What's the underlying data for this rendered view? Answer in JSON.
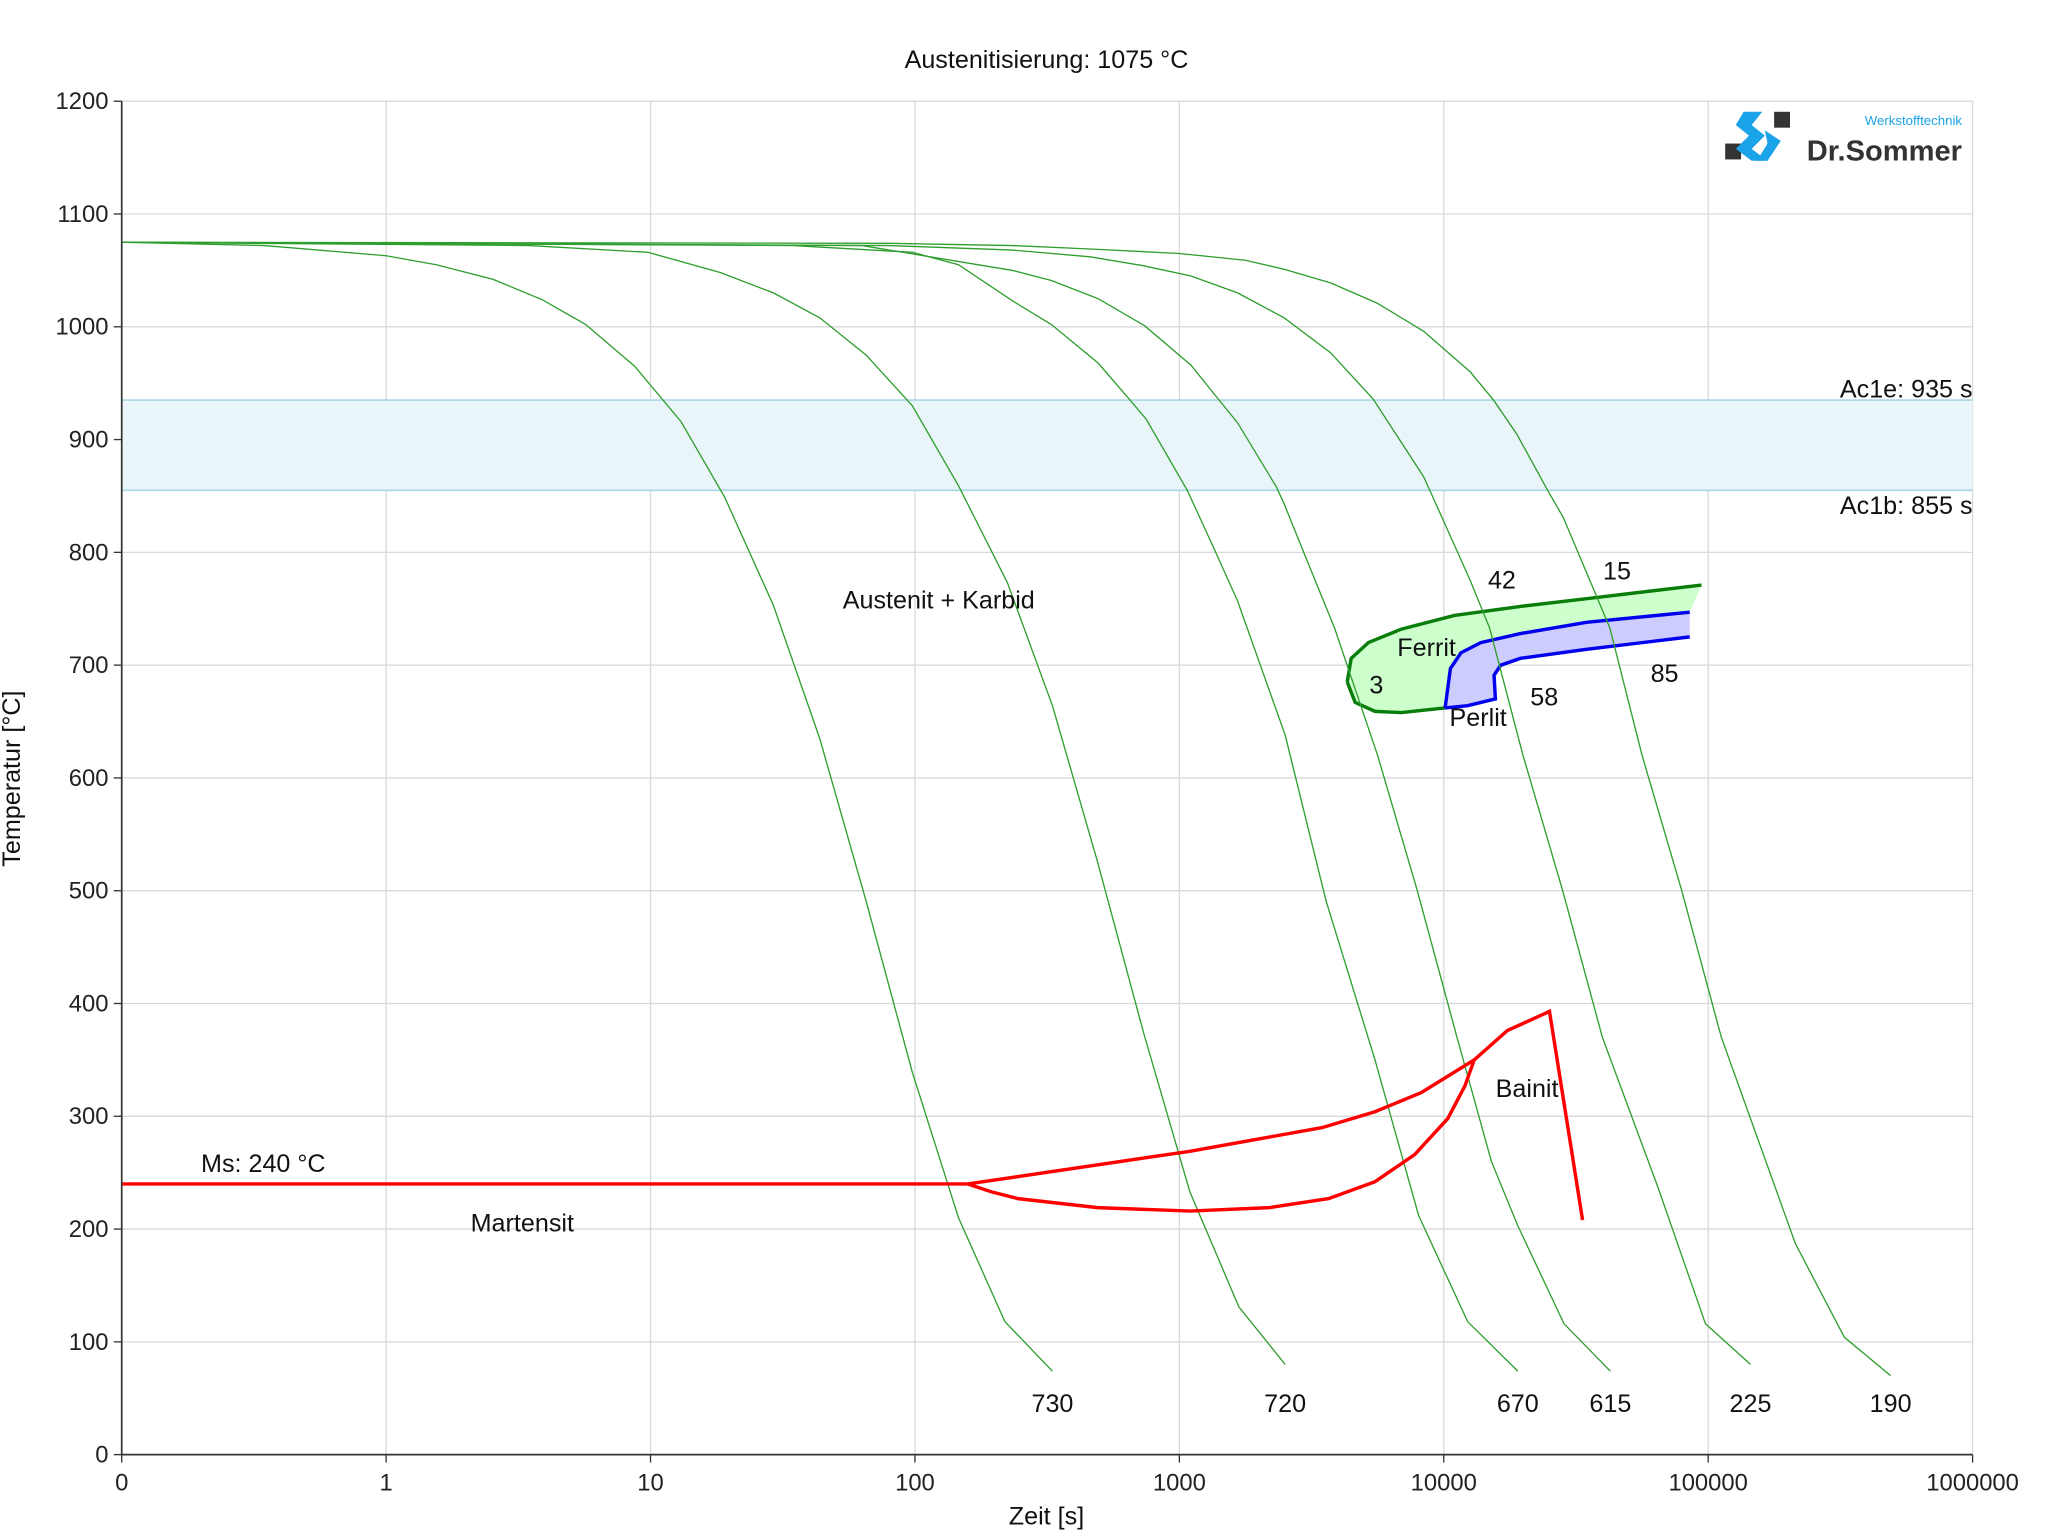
{
  "chart_data": {
    "type": "line",
    "title": "Austenitisierung: 1075 °C",
    "xlabel": "Zeit [s]",
    "ylabel": "Temperatur [°C]",
    "x_scale": "log10",
    "x_ticks": [
      {
        "log": -1,
        "label": "0"
      },
      {
        "log": 0,
        "label": "1"
      },
      {
        "log": 1,
        "label": "10"
      },
      {
        "log": 2,
        "label": "100"
      },
      {
        "log": 3,
        "label": "1000"
      },
      {
        "log": 4,
        "label": "10000"
      },
      {
        "log": 5,
        "label": "100000"
      },
      {
        "log": 6,
        "label": "1000000"
      }
    ],
    "y_ticks": [
      "0",
      "100",
      "200",
      "300",
      "400",
      "500",
      "600",
      "700",
      "800",
      "900",
      "1000",
      "1100",
      "1200"
    ],
    "ylim": [
      0,
      1200
    ],
    "xlim_log": [
      -1,
      6
    ],
    "grid": true,
    "ac1_band": {
      "Ac1e": 935,
      "Ac1b": 855,
      "label_e": "Ac1e: 935 s",
      "label_b": "Ac1b: 855 s"
    },
    "cooling_curves": [
      {
        "label": "730",
        "points": [
          [
            -1,
            1075
          ],
          [
            -0.46,
            1072
          ],
          [
            0,
            1063
          ],
          [
            0.19,
            1055
          ],
          [
            0.405,
            1042
          ],
          [
            0.59,
            1024
          ],
          [
            0.755,
            1002
          ],
          [
            0.94,
            965
          ],
          [
            1.115,
            916
          ],
          [
            1.28,
            849
          ],
          [
            1.465,
            753
          ],
          [
            1.64,
            635
          ],
          [
            1.815,
            491
          ],
          [
            1.99,
            339
          ],
          [
            2.165,
            210
          ],
          [
            2.34,
            118
          ],
          [
            2.52,
            74
          ]
        ]
      },
      {
        "label": "720",
        "points": [
          [
            -1,
            1075
          ],
          [
            0.54,
            1072
          ],
          [
            0.99,
            1066
          ],
          [
            1.265,
            1048
          ],
          [
            1.465,
            1030
          ],
          [
            1.64,
            1008
          ],
          [
            1.815,
            975
          ],
          [
            1.99,
            930
          ],
          [
            2.165,
            859
          ],
          [
            2.35,
            773
          ],
          [
            2.52,
            664
          ],
          [
            2.69,
            526
          ],
          [
            2.865,
            374
          ],
          [
            3.04,
            233
          ],
          [
            3.225,
            131
          ],
          [
            3.4,
            80
          ]
        ]
      },
      {
        "label": "670",
        "points": [
          [
            -1,
            1075
          ],
          [
            1.54,
            1072
          ],
          [
            1.99,
            1066
          ],
          [
            2.165,
            1055
          ],
          [
            2.369,
            1023
          ],
          [
            2.516,
            1002
          ],
          [
            2.692,
            968
          ],
          [
            2.81,
            936
          ],
          [
            2.875,
            918
          ],
          [
            3.03,
            855
          ],
          [
            3.13,
            804
          ],
          [
            3.22,
            757
          ],
          [
            3.4,
            638
          ],
          [
            3.555,
            491
          ],
          [
            3.74,
            350
          ],
          [
            3.905,
            212
          ],
          [
            4.09,
            118
          ],
          [
            4.28,
            74
          ]
        ]
      },
      {
        "label": "615",
        "points": [
          [
            -1,
            1075
          ],
          [
            1.8,
            1072
          ],
          [
            2.369,
            1050
          ],
          [
            2.516,
            1041
          ],
          [
            2.692,
            1025
          ],
          [
            2.868,
            1001
          ],
          [
            3.044,
            966
          ],
          [
            3.147,
            936
          ],
          [
            3.22,
            915
          ],
          [
            3.367,
            858
          ],
          [
            3.396,
            843
          ],
          [
            3.484,
            792
          ],
          [
            3.587,
            733
          ],
          [
            3.75,
            620
          ],
          [
            3.9,
            500
          ],
          [
            4.05,
            370
          ],
          [
            4.18,
            260
          ],
          [
            4.28,
            203
          ],
          [
            4.455,
            116
          ],
          [
            4.63,
            74
          ]
        ]
      },
      {
        "label": "225",
        "points": [
          [
            -1,
            1075
          ],
          [
            1.9,
            1072
          ],
          [
            2.369,
            1068
          ],
          [
            2.662,
            1062
          ],
          [
            2.868,
            1054
          ],
          [
            3.044,
            1045
          ],
          [
            3.22,
            1030
          ],
          [
            3.396,
            1008
          ],
          [
            3.572,
            977
          ],
          [
            3.733,
            936
          ],
          [
            3.924,
            867
          ],
          [
            3.953,
            852
          ],
          [
            4.1,
            775
          ],
          [
            4.173,
            733
          ],
          [
            4.3,
            620
          ],
          [
            4.45,
            500
          ],
          [
            4.6,
            370
          ],
          [
            4.81,
            237
          ],
          [
            4.99,
            116
          ],
          [
            5.16,
            80
          ]
        ]
      },
      {
        "label": "190",
        "points": [
          [
            -1,
            1075
          ],
          [
            1.9,
            1074
          ],
          [
            2.369,
            1072
          ],
          [
            2.662,
            1069
          ],
          [
            3.0,
            1065
          ],
          [
            3.249,
            1059
          ],
          [
            3.396,
            1051
          ],
          [
            3.572,
            1039
          ],
          [
            3.748,
            1021
          ],
          [
            3.924,
            996
          ],
          [
            4.1,
            960
          ],
          [
            4.188,
            935
          ],
          [
            4.276,
            905
          ],
          [
            4.393,
            855
          ],
          [
            4.452,
            831
          ],
          [
            4.569,
            766
          ],
          [
            4.628,
            733
          ],
          [
            4.75,
            620
          ],
          [
            4.9,
            500
          ],
          [
            5.05,
            370
          ],
          [
            5.33,
            187
          ],
          [
            5.515,
            104
          ],
          [
            5.69,
            70
          ]
        ]
      }
    ],
    "ms_line": {
      "temp": 240,
      "points": [
        [
          -1,
          240
        ],
        [
          2.2,
          240
        ]
      ],
      "label": "Ms: 240 °C"
    },
    "bainite": {
      "outer": [
        [
          2.2,
          240
        ],
        [
          3.04,
          269
        ],
        [
          3.54,
          290
        ],
        [
          3.74,
          304
        ],
        [
          3.915,
          321
        ],
        [
          4.115,
          350
        ],
        [
          4.24,
          376
        ],
        [
          4.4,
          393
        ],
        [
          4.525,
          208
        ]
      ],
      "inner": [
        [
          2.2,
          240
        ],
        [
          2.29,
          233
        ],
        [
          2.39,
          227
        ],
        [
          2.69,
          219
        ],
        [
          3.04,
          216
        ],
        [
          3.34,
          219
        ],
        [
          3.565,
          227
        ],
        [
          3.74,
          242
        ],
        [
          3.89,
          266
        ],
        [
          4.015,
          298
        ],
        [
          4.08,
          327
        ],
        [
          4.115,
          350
        ]
      ]
    },
    "ferrite": {
      "top": [
        [
          3.635,
          685
        ],
        [
          3.65,
          706
        ],
        [
          3.715,
          720
        ],
        [
          3.84,
          732
        ],
        [
          4.04,
          744
        ],
        [
          4.29,
          752
        ],
        [
          4.54,
          759
        ],
        [
          4.975,
          771
        ]
      ],
      "bottom": [
        [
          3.635,
          685
        ],
        [
          3.665,
          667
        ],
        [
          3.74,
          659
        ],
        [
          3.84,
          658
        ],
        [
          4.005,
          662
        ]
      ],
      "fill_right": [
        4.93,
        747
      ]
    },
    "pearlite": {
      "upper": [
        [
          4.005,
          662
        ],
        [
          4.025,
          697
        ],
        [
          4.065,
          711
        ],
        [
          4.14,
          720
        ],
        [
          4.29,
          728
        ],
        [
          4.54,
          738
        ],
        [
          4.93,
          747
        ]
      ],
      "lower": [
        [
          4.005,
          662
        ],
        [
          4.09,
          664
        ],
        [
          4.195,
          670
        ],
        [
          4.19,
          691
        ],
        [
          4.215,
          700
        ],
        [
          4.29,
          706
        ],
        [
          4.54,
          714
        ],
        [
          4.93,
          725
        ]
      ]
    },
    "annotations": [
      {
        "text": "Austenit + Karbid",
        "at": [
          2.09,
          750
        ]
      },
      {
        "text": "Ferrit",
        "at": [
          3.935,
          708
        ]
      },
      {
        "text": "Perlit",
        "at": [
          4.13,
          646
        ]
      },
      {
        "text": "3",
        "at": [
          3.745,
          675
        ]
      },
      {
        "text": "42",
        "at": [
          4.22,
          768
        ]
      },
      {
        "text": "15",
        "at": [
          4.655,
          776
        ]
      },
      {
        "text": "58",
        "at": [
          4.38,
          664
        ]
      },
      {
        "text": "85",
        "at": [
          4.835,
          685
        ]
      },
      {
        "text": "Bainit",
        "at": [
          4.315,
          317
        ]
      },
      {
        "text": "Martensit",
        "at": [
          0.515,
          198
        ]
      }
    ],
    "colors": {
      "cooling": "#2e9e2e",
      "ferrite_line": "#0a7d0a",
      "ferrite_fill": "#ccffcc",
      "pearlite_line": "#0000ee",
      "pearlite_fill": "#ccccff",
      "bainite": "#ff0000",
      "band": "#eaf5f9",
      "band_line": "#a8d8e6"
    }
  },
  "logo": {
    "brand": "Dr.Sommer",
    "sub": "Werkstofftechnik"
  }
}
